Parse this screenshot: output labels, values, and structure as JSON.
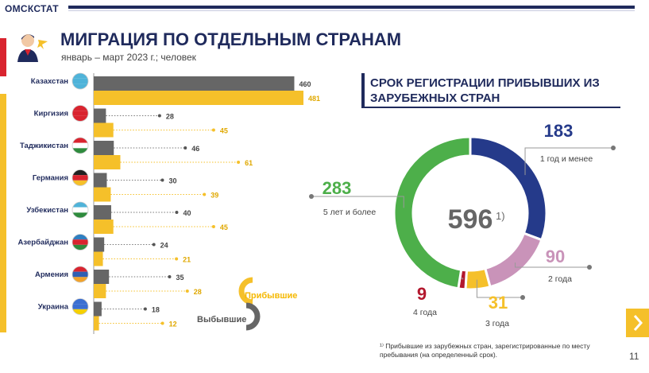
{
  "header": {
    "brand": "ОМСКСТАТ",
    "page_number": "11"
  },
  "title": "МИГРАЦИЯ ПО ОТДЕЛЬНЫМ СТРАНАМ",
  "subtitle": "январь – март 2023 г.; человек",
  "legend": {
    "arrived": "Прибывшие",
    "departed": "Выбывшие"
  },
  "colors": {
    "arrived": "#f5c02a",
    "departed": "#666666",
    "navy": "#1f2a5c"
  },
  "right_title": "СРОК РЕГИСТРАЦИИ ПРИБЫВШИХ ИЗ ЗАРУБЕЖНЫХ СТРАН",
  "donut_total": "596",
  "donut_total_sup": "1)",
  "footnote": "¹⁾ Прибывшие из зарубежных стран, зарегистрированные по месту пребывания (на определенный срок).",
  "chart_data": [
    {
      "type": "bar",
      "orientation": "horizontal",
      "categories": [
        "Казахстан",
        "Киргизия",
        "Таджикистан",
        "Германия",
        "Узбекистан",
        "Азербайджан",
        "Армения",
        "Украина"
      ],
      "series": [
        {
          "name": "Выбывшие",
          "color": "#666666",
          "values": [
            460,
            28,
            46,
            30,
            40,
            24,
            35,
            18
          ]
        },
        {
          "name": "Прибывшие",
          "color": "#f5c02a",
          "values": [
            481,
            45,
            61,
            39,
            45,
            21,
            28,
            12
          ]
        }
      ],
      "title": "МИГРАЦИЯ ПО ОТДЕЛЬНЫМ СТРАНАМ",
      "legend_position": "bottom-right"
    },
    {
      "type": "pie",
      "style": "donut",
      "title": "СРОК РЕГИСТРАЦИИ ПРИБЫВШИХ ИЗ ЗАРУБЕЖНЫХ СТРАН",
      "total": 596,
      "slices": [
        {
          "value": 183,
          "label": "1 год и менее",
          "color": "#253a8a"
        },
        {
          "value": 90,
          "label": "2 года",
          "color": "#c993b9"
        },
        {
          "value": 31,
          "label": "3 года",
          "color": "#f5c02a"
        },
        {
          "value": 9,
          "label": "4 года",
          "color": "#b3182e"
        },
        {
          "value": 283,
          "label": "5 лет и более",
          "color": "#4daf4a"
        }
      ]
    }
  ]
}
